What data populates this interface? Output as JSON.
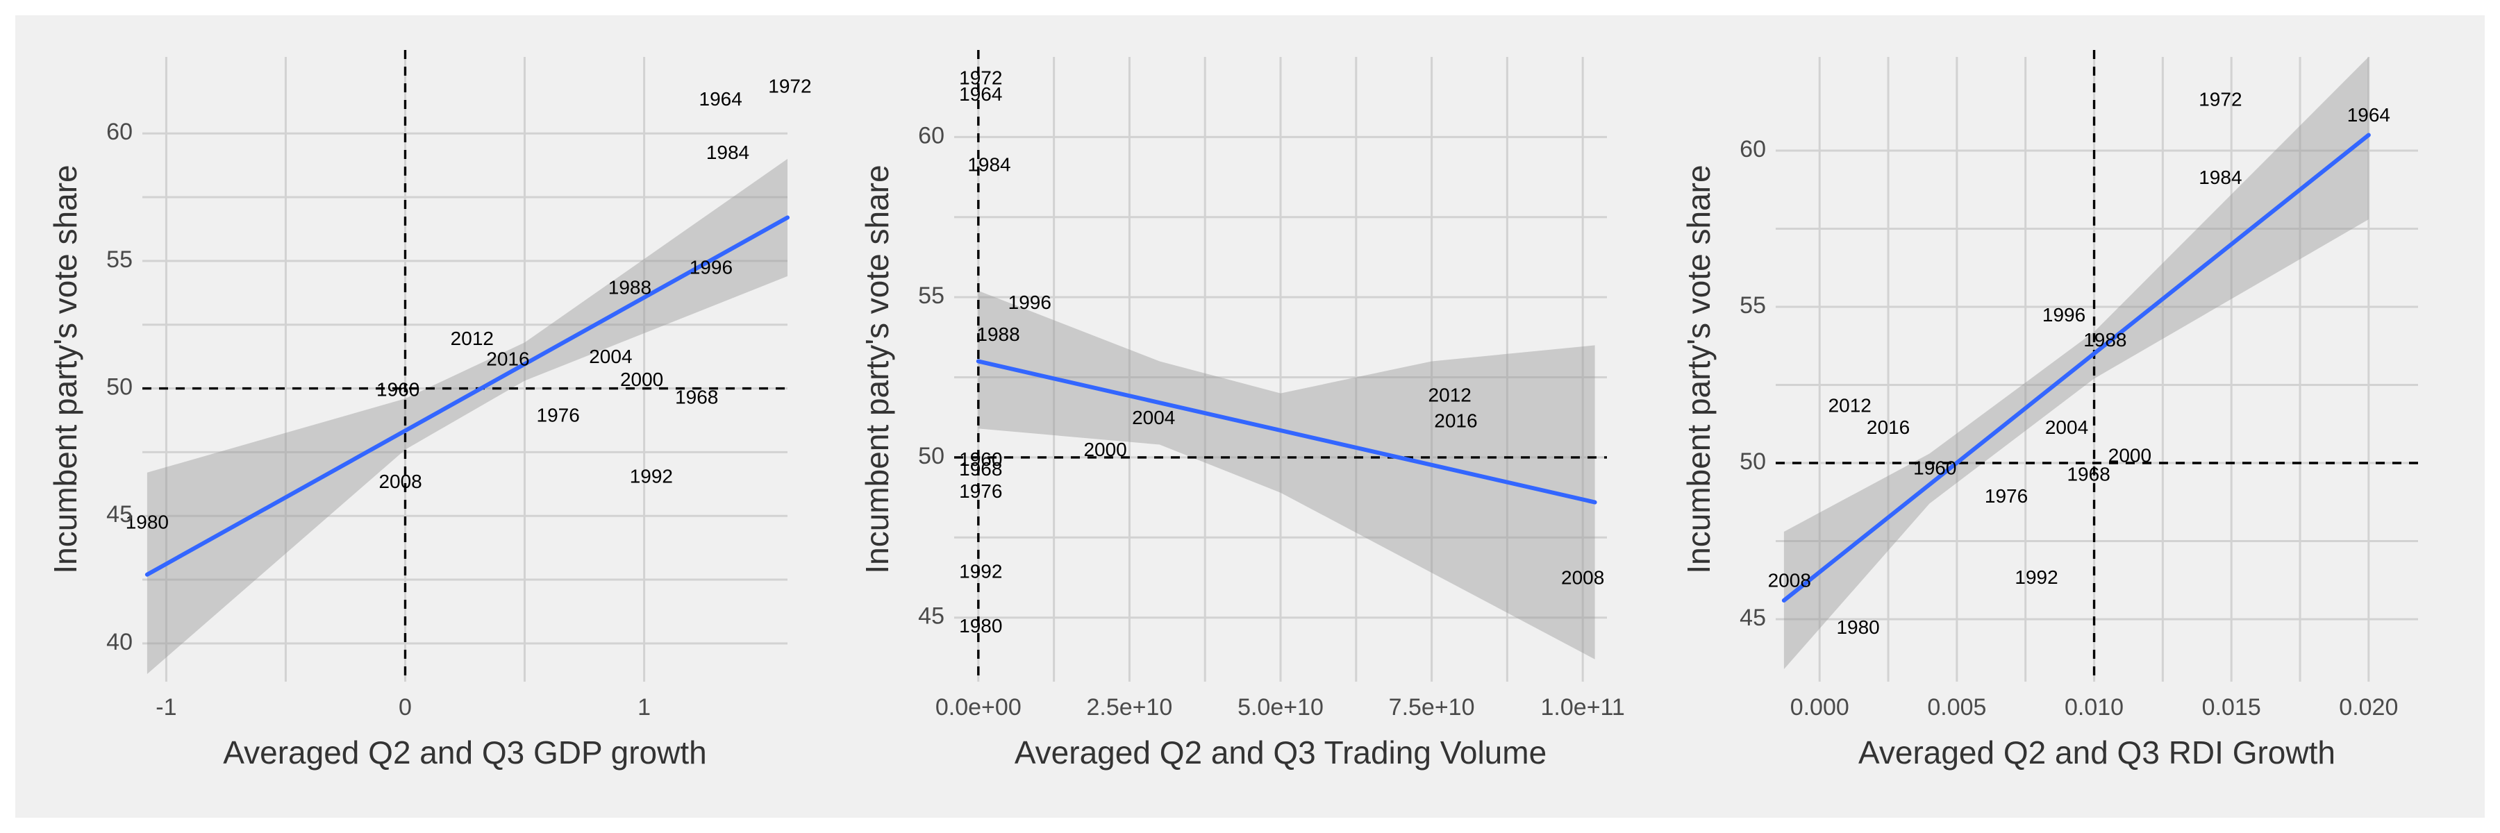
{
  "chart_data": [
    {
      "type": "scatter",
      "xlabel": "Averaged Q2 and Q3 GDP growth",
      "ylabel": "Incumbent party's vote share",
      "xlim": [
        -1.1,
        1.6
      ],
      "ylim": [
        38.5,
        63
      ],
      "x_ticks": [
        -1,
        0,
        1
      ],
      "x_tick_labels": [
        "-1",
        "0",
        "1"
      ],
      "y_ticks": [
        40,
        45,
        50,
        55,
        60
      ],
      "y_tick_labels": [
        "40",
        "45",
        "50",
        "55",
        "60"
      ],
      "ref_lines": {
        "x": 0,
        "y": 50
      },
      "grid": true,
      "points": [
        {
          "label": "1972",
          "x": 1.61,
          "y": 61.8
        },
        {
          "label": "1964",
          "x": 1.32,
          "y": 61.3
        },
        {
          "label": "1984",
          "x": 1.35,
          "y": 59.2
        },
        {
          "label": "1996",
          "x": 1.28,
          "y": 54.7
        },
        {
          "label": "1988",
          "x": 0.94,
          "y": 53.9
        },
        {
          "label": "2012",
          "x": 0.28,
          "y": 51.9
        },
        {
          "label": "2016",
          "x": 0.43,
          "y": 51.1
        },
        {
          "label": "2004",
          "x": 0.86,
          "y": 51.2
        },
        {
          "label": "2000",
          "x": 0.99,
          "y": 50.3
        },
        {
          "label": "1968",
          "x": 1.22,
          "y": 49.6
        },
        {
          "label": "1960",
          "x": -0.03,
          "y": 49.9
        },
        {
          "label": "1976",
          "x": 0.64,
          "y": 48.9
        },
        {
          "label": "2008",
          "x": -0.02,
          "y": 46.3
        },
        {
          "label": "1992",
          "x": 1.03,
          "y": 46.5
        },
        {
          "label": "1980",
          "x": -1.08,
          "y": 44.7
        }
      ],
      "fit": {
        "x0": -1.08,
        "x1": 1.6,
        "y0": 42.7,
        "y1": 56.7
      },
      "ci": {
        "lower": [
          [
            -1.08,
            38.8
          ],
          [
            0,
            47.6
          ],
          [
            0.5,
            50.3
          ],
          [
            1.6,
            54.4
          ]
        ],
        "upper": [
          [
            -1.08,
            46.7
          ],
          [
            0,
            49.6
          ],
          [
            0.5,
            51.8
          ],
          [
            1.6,
            59.0
          ]
        ]
      }
    },
    {
      "type": "scatter",
      "xlabel": "Averaged Q2 and Q3 Trading Volume",
      "ylabel": "Incumbent party's vote share",
      "xlim": [
        -4000000000.0,
        104000000000.0
      ],
      "ylim": [
        43,
        62.5
      ],
      "x_ticks": [
        0,
        25000000000.0,
        50000000000.0,
        75000000000.0,
        100000000000.0
      ],
      "x_tick_labels": [
        "0.0e+00",
        "2.5e+10",
        "5.0e+10",
        "7.5e+10",
        "1.0e+11"
      ],
      "y_ticks": [
        45,
        50,
        55,
        60
      ],
      "y_tick_labels": [
        "45",
        "50",
        "55",
        "60"
      ],
      "ref_lines": {
        "x": 0,
        "y": 50
      },
      "grid": true,
      "points": [
        {
          "label": "1972",
          "x": 400000000.0,
          "y": 61.8
        },
        {
          "label": "1964",
          "x": 400000000.0,
          "y": 61.3
        },
        {
          "label": "1984",
          "x": 1800000000.0,
          "y": 59.1
        },
        {
          "label": "1996",
          "x": 8500000000.0,
          "y": 54.8
        },
        {
          "label": "1988",
          "x": 3300000000.0,
          "y": 53.8
        },
        {
          "label": "2004",
          "x": 29000000000.0,
          "y": 51.2
        },
        {
          "label": "2000",
          "x": 21000000000.0,
          "y": 50.2
        },
        {
          "label": "2012",
          "x": 78000000000.0,
          "y": 51.9
        },
        {
          "label": "2016",
          "x": 79000000000.0,
          "y": 51.1
        },
        {
          "label": "1960",
          "x": 400000000.0,
          "y": 49.9
        },
        {
          "label": "1968",
          "x": 400000000.0,
          "y": 49.6
        },
        {
          "label": "1976",
          "x": 400000000.0,
          "y": 48.9
        },
        {
          "label": "1992",
          "x": 400000000.0,
          "y": 46.4
        },
        {
          "label": "1980",
          "x": 400000000.0,
          "y": 44.7
        },
        {
          "label": "2008",
          "x": 100000000000.0,
          "y": 46.2
        }
      ],
      "fit": {
        "x0": 0,
        "x1": 102000000000.0,
        "y0": 53.0,
        "y1": 48.6
      },
      "ci": {
        "lower": [
          [
            0,
            50.9
          ],
          [
            30000000000.0,
            50.4
          ],
          [
            50000000000.0,
            48.9
          ],
          [
            75000000000.0,
            46.4
          ],
          [
            102000000000.0,
            43.7
          ]
        ],
        "upper": [
          [
            0,
            55.2
          ],
          [
            30000000000.0,
            53.0
          ],
          [
            50000000000.0,
            52.0
          ],
          [
            75000000000.0,
            53.0
          ],
          [
            102000000000.0,
            53.5
          ]
        ]
      }
    },
    {
      "type": "scatter",
      "xlabel": "Averaged Q2 and Q3 RDI Growth",
      "ylabel": "Incumbent party's vote share",
      "xlim": [
        -0.0016,
        0.0218
      ],
      "ylim": [
        43,
        63
      ],
      "x_ticks": [
        0,
        0.005,
        0.01,
        0.015,
        0.02
      ],
      "x_tick_labels": [
        "0.000",
        "0.005",
        "0.010",
        "0.015",
        "0.020"
      ],
      "y_ticks": [
        45,
        50,
        55,
        60
      ],
      "y_tick_labels": [
        "45",
        "50",
        "55",
        "60"
      ],
      "ref_lines": {
        "x": 0.01,
        "y": 50
      },
      "grid": true,
      "points": [
        {
          "label": "1972",
          "x": 0.0146,
          "y": 61.6
        },
        {
          "label": "1964",
          "x": 0.02,
          "y": 61.1
        },
        {
          "label": "1984",
          "x": 0.0146,
          "y": 59.1
        },
        {
          "label": "1996",
          "x": 0.0089,
          "y": 54.7
        },
        {
          "label": "1988",
          "x": 0.0104,
          "y": 53.9
        },
        {
          "label": "2012",
          "x": 0.0011,
          "y": 51.8
        },
        {
          "label": "2016",
          "x": 0.0025,
          "y": 51.1
        },
        {
          "label": "2004",
          "x": 0.009,
          "y": 51.1
        },
        {
          "label": "2000",
          "x": 0.0113,
          "y": 50.2
        },
        {
          "label": "1960",
          "x": 0.0042,
          "y": 49.8
        },
        {
          "label": "1968",
          "x": 0.0098,
          "y": 49.6
        },
        {
          "label": "1976",
          "x": 0.0068,
          "y": 48.9
        },
        {
          "label": "1992",
          "x": 0.0079,
          "y": 46.3
        },
        {
          "label": "2008",
          "x": -0.0011,
          "y": 46.2
        },
        {
          "label": "1980",
          "x": 0.0014,
          "y": 44.7
        }
      ],
      "fit": {
        "x0": -0.0013,
        "x1": 0.02,
        "y0": 45.6,
        "y1": 60.5
      },
      "ci": {
        "lower": [
          [
            -0.0013,
            43.4
          ],
          [
            0.004,
            48.7
          ],
          [
            0.01,
            52.7
          ],
          [
            0.02,
            57.8
          ]
        ],
        "upper": [
          [
            -0.0013,
            47.8
          ],
          [
            0.004,
            50.3
          ],
          [
            0.01,
            54.2
          ],
          [
            0.02,
            63.0
          ]
        ]
      }
    }
  ]
}
